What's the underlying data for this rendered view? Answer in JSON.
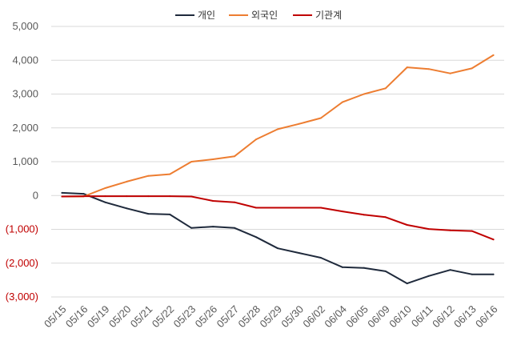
{
  "chart_data": {
    "type": "line",
    "title": "",
    "xlabel": "",
    "ylabel": "",
    "ylim": [
      -3000,
      5000
    ],
    "grid": true,
    "legend_position": "top-center",
    "y_ticks": [
      {
        "value": 5000,
        "label": "5,000"
      },
      {
        "value": 4000,
        "label": "4,000"
      },
      {
        "value": 3000,
        "label": "3,000"
      },
      {
        "value": 2000,
        "label": "2,000"
      },
      {
        "value": 1000,
        "label": "1,000"
      },
      {
        "value": 0,
        "label": "0"
      },
      {
        "value": -1000,
        "label": "(1,000)"
      },
      {
        "value": -2000,
        "label": "(2,000)"
      },
      {
        "value": -3000,
        "label": "(3,000)"
      }
    ],
    "categories": [
      "05/15",
      "05/16",
      "05/19",
      "05/20",
      "05/21",
      "05/22",
      "05/23",
      "05/26",
      "05/27",
      "05/28",
      "05/29",
      "05/30",
      "06/02",
      "06/04",
      "06/05",
      "06/09",
      "06/10",
      "06/11",
      "06/12",
      "06/13",
      "06/16"
    ],
    "series": [
      {
        "name": "개인",
        "color": "#1f2a3c",
        "values": [
          80,
          50,
          -200,
          -380,
          -540,
          -560,
          -960,
          -920,
          -960,
          -1230,
          -1560,
          -1700,
          -1840,
          -2120,
          -2140,
          -2240,
          -2600,
          -2380,
          -2200,
          -2330,
          -2330
        ]
      },
      {
        "name": "외국인",
        "color": "#ed7d31",
        "values": [
          -30,
          -30,
          220,
          410,
          580,
          630,
          1000,
          1070,
          1160,
          1660,
          1960,
          2120,
          2290,
          2760,
          3000,
          3170,
          3790,
          3740,
          3610,
          3760,
          4150
        ]
      },
      {
        "name": "기관계",
        "color": "#c00000",
        "values": [
          -30,
          -20,
          -20,
          -20,
          -20,
          -20,
          -30,
          -160,
          -200,
          -360,
          -360,
          -360,
          -360,
          -470,
          -570,
          -640,
          -870,
          -990,
          -1030,
          -1050,
          -1300
        ]
      }
    ],
    "colors": {
      "negative_label": "#c00000",
      "positive_label": "#595959",
      "gridline": "#d9d9d9"
    }
  }
}
